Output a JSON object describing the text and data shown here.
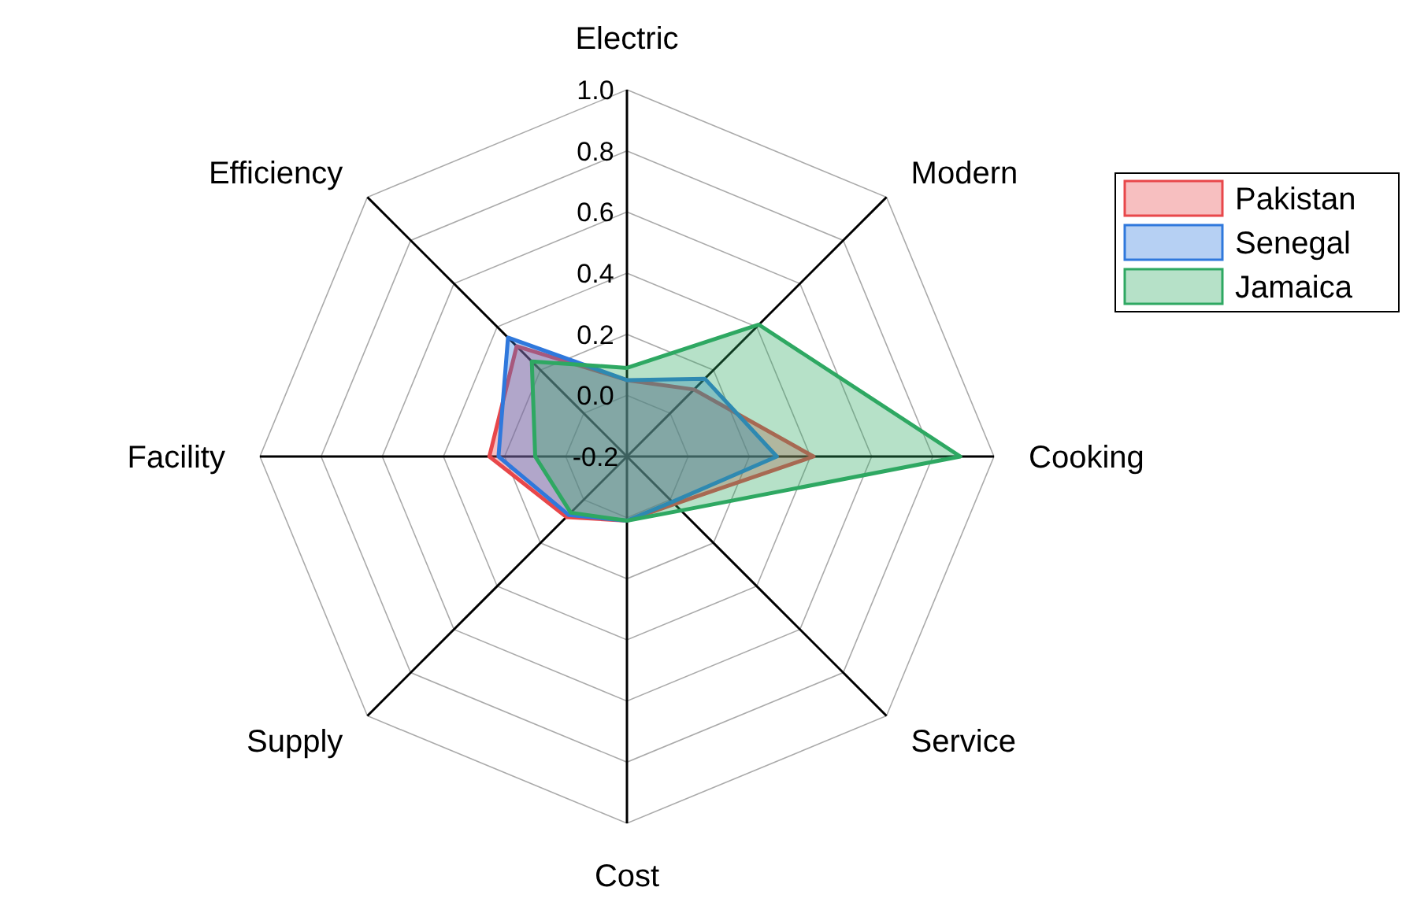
{
  "chart_data": {
    "type": "radar",
    "categories": [
      "Electric",
      "Modern",
      "Cooking",
      "Service",
      "Cost",
      "Supply",
      "Facility",
      "Efficiency"
    ],
    "ylim": [
      -0.2,
      1.0
    ],
    "yticks": [
      {
        "value": -0.2,
        "label": "-0.2"
      },
      {
        "value": 0,
        "label": "0.0"
      },
      {
        "value": 0.2,
        "label": "0.2"
      },
      {
        "value": 0.4,
        "label": "0.4"
      },
      {
        "value": 0.6,
        "label": "0.6"
      },
      {
        "value": 0.8,
        "label": "0.8"
      },
      {
        "value": 1,
        "label": "1.0"
      }
    ],
    "grid": true,
    "legend": "top right",
    "series": [
      {
        "name": "Pakistan",
        "color": "#e8474a",
        "values": [
          0.05,
          0.11,
          0.41,
          0.02,
          0.01,
          0.08,
          0.25,
          0.31
        ]
      },
      {
        "name": "Senegal",
        "color": "#2f78dc",
        "values": [
          0.05,
          0.16,
          0.29,
          0.01,
          0.01,
          0.07,
          0.22,
          0.35
        ]
      },
      {
        "name": "Jamaica",
        "color": "#2ea862",
        "values": [
          0.09,
          0.41,
          0.89,
          0.05,
          0.01,
          0.06,
          0.1,
          0.24
        ]
      }
    ]
  }
}
